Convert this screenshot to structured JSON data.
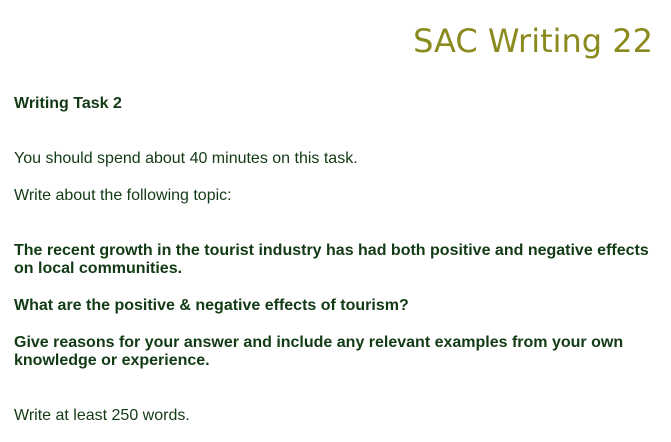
{
  "header": {
    "title": "SAC Writing 22"
  },
  "task": {
    "heading": "Writing Task 2",
    "time_instruction": "You should spend about 40 minutes on this task.",
    "topic_instruction": "Write about the following topic:",
    "statement": "The recent growth in the tourist industry has had both positive and negative effects on local communities.",
    "question": "What are the positive & negative effects of tourism?",
    "reasons": "Give reasons for your answer and include any relevant examples from your own knowledge or experience.",
    "word_count": "Write at least 250 words."
  },
  "colors": {
    "title": "#8a8a1e",
    "text": "#123a14"
  }
}
